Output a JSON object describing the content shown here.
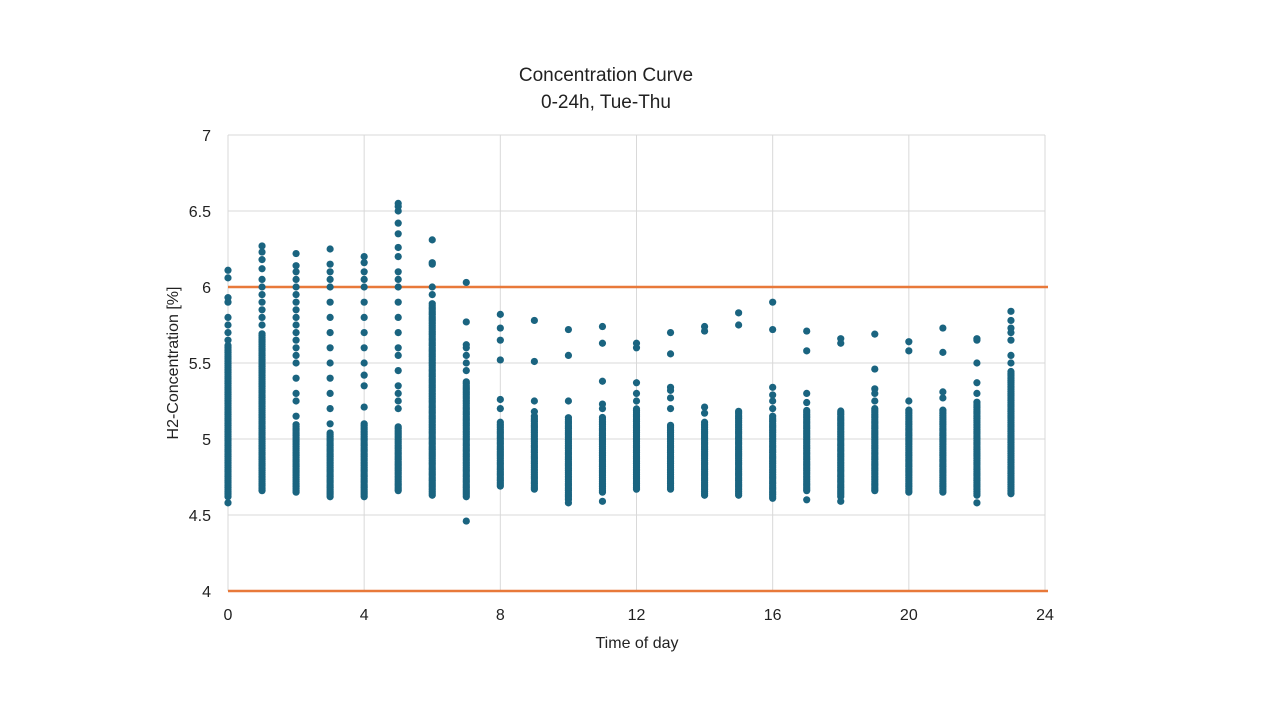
{
  "chart_data": {
    "type": "scatter",
    "title": "Concentration Curve",
    "subtitle": "0-24h, Tue-Thu",
    "xlabel": "Time of day",
    "ylabel": "H2-Concentration [%]",
    "xlim": [
      0,
      24
    ],
    "ylim": [
      4,
      7
    ],
    "x_ticks": [
      "0",
      "4",
      "8",
      "12",
      "16",
      "20",
      "24"
    ],
    "y_ticks": [
      "4",
      "4.5",
      "5",
      "5.5",
      "6",
      "6.5",
      "7"
    ],
    "grid": true,
    "legend": "none",
    "colors": {
      "points": "#1a6480",
      "limit_lines": "#e8793a",
      "grid": "#d9d9d9"
    },
    "limit_lines": [
      6,
      4
    ],
    "series": [
      {
        "values": [
          {
            "x": 0,
            "y_range": [
              4.62,
              5.62
            ],
            "outliers": [
              4.58,
              5.65,
              5.7,
              5.75,
              5.8,
              5.9,
              5.93,
              6.06,
              6.11
            ]
          },
          {
            "x": 1,
            "y_range": [
              4.66,
              5.7
            ],
            "outliers": [
              5.75,
              5.8,
              5.85,
              5.9,
              5.95,
              6.0,
              6.05,
              6.12,
              6.18,
              6.23,
              6.27
            ]
          },
          {
            "x": 2,
            "y_range": [
              4.65,
              5.1
            ],
            "outliers": [
              5.15,
              5.25,
              5.3,
              5.4,
              5.5,
              5.55,
              5.6,
              5.65,
              5.7,
              5.75,
              5.8,
              5.85,
              5.9,
              5.95,
              6.0,
              6.05,
              6.1,
              6.14,
              6.22
            ]
          },
          {
            "x": 3,
            "y_range": [
              4.62,
              5.05
            ],
            "outliers": [
              5.1,
              5.2,
              5.3,
              5.4,
              5.5,
              5.6,
              5.7,
              5.8,
              5.9,
              6.0,
              6.05,
              6.1,
              6.15,
              6.25
            ]
          },
          {
            "x": 4,
            "y_range": [
              4.62,
              5.1
            ],
            "outliers": [
              5.21,
              5.35,
              5.42,
              5.5,
              5.6,
              5.7,
              5.8,
              5.9,
              6.0,
              6.05,
              6.1,
              6.16,
              6.2
            ]
          },
          {
            "x": 5,
            "y_range": [
              4.66,
              5.08
            ],
            "outliers": [
              5.2,
              5.25,
              5.3,
              5.35,
              5.45,
              5.55,
              5.6,
              5.7,
              5.8,
              5.9,
              6.0,
              6.05,
              6.1,
              6.2,
              6.26,
              6.35,
              6.42,
              6.5,
              6.53,
              6.55
            ]
          },
          {
            "x": 6,
            "y_range": [
              4.63,
              5.9
            ],
            "outliers": [
              5.95,
              6.0,
              6.15,
              6.16,
              6.31
            ]
          },
          {
            "x": 7,
            "y_range": [
              4.62,
              5.38
            ],
            "outliers": [
              4.46,
              5.45,
              5.5,
              5.55,
              5.6,
              5.62,
              5.77,
              6.03
            ]
          },
          {
            "x": 8,
            "y_range": [
              4.69,
              5.12
            ],
            "outliers": [
              5.2,
              5.26,
              5.52,
              5.65,
              5.73,
              5.82
            ]
          },
          {
            "x": 9,
            "y_range": [
              4.67,
              5.15
            ],
            "outliers": [
              5.18,
              5.25,
              5.51,
              5.78
            ]
          },
          {
            "x": 10,
            "y_range": [
              4.6,
              5.14
            ],
            "outliers": [
              4.58,
              5.25,
              5.55,
              5.72
            ]
          },
          {
            "x": 11,
            "y_range": [
              4.65,
              5.15
            ],
            "outliers": [
              4.59,
              5.2,
              5.23,
              5.38,
              5.63,
              5.74
            ]
          },
          {
            "x": 12,
            "y_range": [
              4.67,
              5.2
            ],
            "outliers": [
              5.25,
              5.3,
              5.37,
              5.6,
              5.63
            ]
          },
          {
            "x": 13,
            "y_range": [
              4.67,
              5.1
            ],
            "outliers": [
              5.2,
              5.27,
              5.32,
              5.34,
              5.56,
              5.7
            ]
          },
          {
            "x": 14,
            "y_range": [
              4.63,
              5.12
            ],
            "outliers": [
              5.17,
              5.21,
              5.71,
              5.74
            ]
          },
          {
            "x": 15,
            "y_range": [
              4.63,
              5.19
            ],
            "outliers": [
              5.75,
              5.83
            ]
          },
          {
            "x": 16,
            "y_range": [
              4.61,
              5.15
            ],
            "outliers": [
              5.2,
              5.25,
              5.29,
              5.34,
              5.72,
              5.9
            ]
          },
          {
            "x": 17,
            "y_range": [
              4.66,
              5.19
            ],
            "outliers": [
              4.6,
              5.24,
              5.3,
              5.58,
              5.71
            ]
          },
          {
            "x": 18,
            "y_range": [
              4.62,
              5.19
            ],
            "outliers": [
              4.59,
              5.63,
              5.66
            ]
          },
          {
            "x": 19,
            "y_range": [
              4.66,
              5.2
            ],
            "outliers": [
              5.25,
              5.3,
              5.33,
              5.46,
              5.69
            ]
          },
          {
            "x": 20,
            "y_range": [
              4.65,
              5.2
            ],
            "outliers": [
              5.25,
              5.58,
              5.64
            ]
          },
          {
            "x": 21,
            "y_range": [
              4.65,
              5.2
            ],
            "outliers": [
              5.27,
              5.31,
              5.57,
              5.73
            ]
          },
          {
            "x": 22,
            "y_range": [
              4.63,
              5.25
            ],
            "outliers": [
              4.58,
              5.3,
              5.37,
              5.5,
              5.65,
              5.66
            ]
          },
          {
            "x": 23,
            "y_range": [
              4.64,
              5.45
            ],
            "outliers": [
              5.5,
              5.55,
              5.65,
              5.7,
              5.73,
              5.78,
              5.84
            ]
          }
        ]
      }
    ]
  }
}
